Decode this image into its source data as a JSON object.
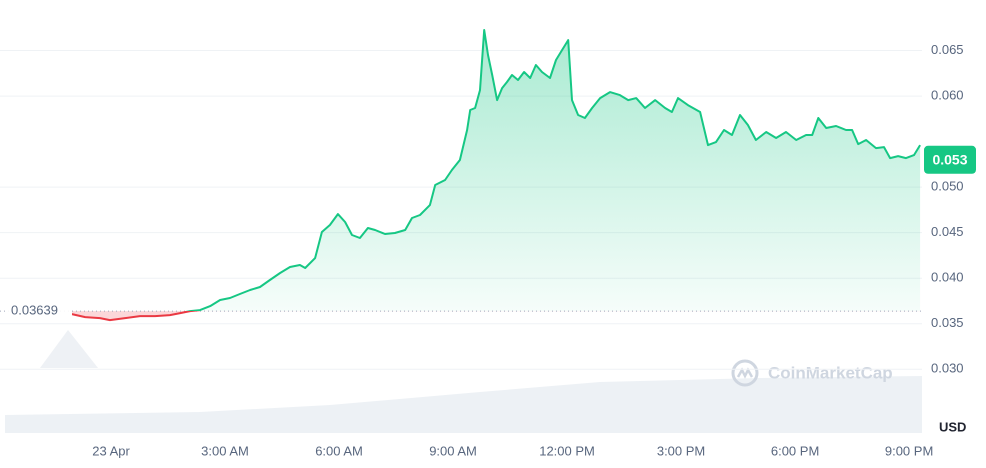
{
  "chart_data": {
    "type": "line",
    "x": [
      -1.03,
      -0.68,
      -0.29,
      -0.03,
      0.37,
      0.76,
      1.16,
      1.55,
      1.82,
      2.08,
      2.34,
      2.61,
      2.87,
      3.13,
      3.39,
      3.66,
      3.92,
      4.18,
      4.45,
      4.71,
      4.97,
      5.11,
      5.37,
      5.55,
      5.76,
      5.97,
      6.16,
      6.34,
      6.55,
      6.76,
      6.95,
      7.21,
      7.47,
      7.74,
      7.92,
      8.13,
      8.39,
      8.53,
      8.79,
      8.97,
      9.18,
      9.37,
      9.45,
      9.58,
      9.71,
      9.82,
      9.92,
      10.03,
      10.16,
      10.29,
      10.42,
      10.55,
      10.71,
      10.87,
      11.03,
      11.18,
      11.34,
      11.55,
      11.71,
      11.87,
      12.03,
      12.13,
      12.29,
      12.47,
      12.66,
      12.87,
      13.13,
      13.39,
      13.61,
      13.82,
      14.05,
      14.32,
      14.58,
      14.76,
      14.92,
      15.18,
      15.5,
      15.71,
      15.92,
      16.13,
      16.34,
      16.55,
      16.76,
      16.97,
      17.24,
      17.5,
      17.76,
      18.03,
      18.29,
      18.45,
      18.61,
      18.82,
      19.08,
      19.34,
      19.5,
      19.66,
      19.87,
      20.13,
      20.34,
      20.5,
      20.71,
      20.92,
      21.13,
      21.29
    ],
    "values": [
      0.03606,
      0.03573,
      0.03562,
      0.0354,
      0.03562,
      0.03584,
      0.03584,
      0.03595,
      0.03617,
      0.03639,
      0.0365,
      0.03694,
      0.0376,
      0.03782,
      0.03826,
      0.0387,
      0.03903,
      0.0398,
      0.04057,
      0.04123,
      0.04145,
      0.04112,
      0.04221,
      0.04507,
      0.04584,
      0.04704,
      0.04617,
      0.04474,
      0.04441,
      0.04551,
      0.04529,
      0.04485,
      0.04496,
      0.04529,
      0.04661,
      0.04694,
      0.04803,
      0.05023,
      0.05078,
      0.05188,
      0.05298,
      0.05627,
      0.05847,
      0.05869,
      0.06066,
      0.06725,
      0.06451,
      0.06231,
      0.05956,
      0.06088,
      0.06154,
      0.06231,
      0.06176,
      0.06264,
      0.06198,
      0.06341,
      0.06264,
      0.06198,
      0.06396,
      0.06506,
      0.06615,
      0.05956,
      0.05792,
      0.05759,
      0.05869,
      0.05978,
      0.06044,
      0.06011,
      0.05956,
      0.05978,
      0.05869,
      0.05956,
      0.05869,
      0.05825,
      0.05978,
      0.05901,
      0.05825,
      0.05462,
      0.05495,
      0.05627,
      0.05572,
      0.05792,
      0.05682,
      0.05517,
      0.05605,
      0.05539,
      0.05605,
      0.05517,
      0.05572,
      0.05572,
      0.05759,
      0.05649,
      0.05671,
      0.05627,
      0.05627,
      0.05473,
      0.05517,
      0.05429,
      0.0544,
      0.05319,
      0.05341,
      0.05319,
      0.05352,
      0.05462
    ],
    "up_color": "#16c784",
    "down_color": "#ea3943",
    "reference_value": 0.03639,
    "reference_label": "0.03639",
    "current_value": 0.053,
    "current_label": "0.053",
    "currency_label": "USD",
    "watermark": "CoinMarketCap",
    "xlim": [
      -2.79,
      21.34
    ],
    "xticks": [
      {
        "value": 0,
        "label": "23 Apr"
      },
      {
        "value": 3,
        "label": "3:00 AM"
      },
      {
        "value": 6,
        "label": "6:00 AM"
      },
      {
        "value": 9,
        "label": "9:00 AM"
      },
      {
        "value": 12,
        "label": "12:00 PM"
      },
      {
        "value": 15,
        "label": "3:00 PM"
      },
      {
        "value": 18,
        "label": "6:00 PM"
      },
      {
        "value": 21,
        "label": "9:00 PM"
      }
    ],
    "ylim": [
      0.023,
      0.07
    ],
    "yticks": [
      {
        "value": 0.03,
        "label": "0.030"
      },
      0.035,
      {
        "value": 0.04,
        "label": "0.040"
      },
      0.045,
      {
        "value": 0.05,
        "label": "0.050"
      },
      {
        "value": 0.06,
        "label": "0.060"
      },
      0.065
    ],
    "grid": true
  }
}
